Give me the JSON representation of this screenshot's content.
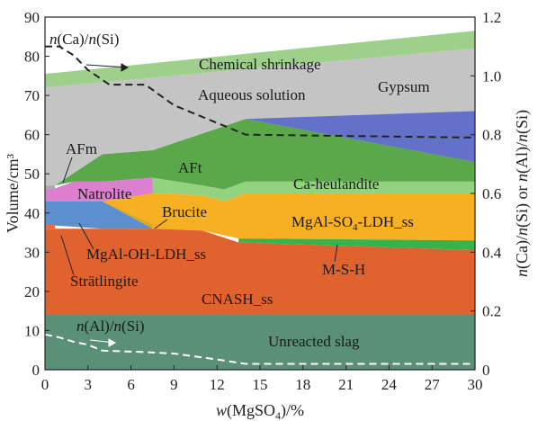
{
  "chart_data": {
    "type": "area",
    "xlabel_parts": [
      "w",
      "(MgSO",
      "4",
      ")/%"
    ],
    "ylabel": "Volume/cm³",
    "y2label_parts": [
      "n",
      "(Ca)/",
      "n",
      "(Si) or ",
      "n",
      "(Al)/",
      "n",
      "(Si)"
    ],
    "xlim": [
      0,
      30
    ],
    "ylim": [
      0,
      90
    ],
    "y2lim": [
      0,
      1.2
    ],
    "xticks": [
      "0",
      "3",
      "6",
      "9",
      "12",
      "15",
      "18",
      "21",
      "24",
      "27",
      "30"
    ],
    "yticks": [
      "0",
      "10",
      "20",
      "30",
      "40",
      "50",
      "60",
      "70",
      "80",
      "90"
    ],
    "y2ticks": [
      "0",
      "0.2",
      "0.4",
      "0.6",
      "0.8",
      "1.0",
      "1.2"
    ],
    "grid": false,
    "regions": [
      {
        "name": "Chemical shrinkage",
        "color": "#9ed08c",
        "lower": [
          [
            0,
            72
          ],
          [
            30,
            82
          ]
        ],
        "upper": [
          [
            0,
            75.5
          ],
          [
            30,
            86.5
          ]
        ]
      },
      {
        "name": "Aqueous solution",
        "color": "#c4c4c4",
        "lower": [
          [
            0,
            47
          ],
          [
            0.7,
            47
          ],
          [
            4,
            55
          ],
          [
            7.5,
            56
          ],
          [
            14,
            64
          ],
          [
            30,
            53
          ]
        ],
        "upper": [
          [
            0,
            72
          ],
          [
            30,
            82
          ]
        ]
      },
      {
        "name": "Gypsum",
        "color": "#6371c8",
        "lower": [
          [
            14,
            64
          ],
          [
            30,
            53
          ]
        ],
        "upper": [
          [
            14,
            64
          ],
          [
            30,
            66
          ]
        ]
      },
      {
        "name": "AFt",
        "color": "#5aa84a",
        "lower": [
          [
            0.7,
            47
          ],
          [
            2,
            48
          ],
          [
            4,
            48
          ],
          [
            7.5,
            49
          ],
          [
            11,
            47
          ],
          [
            12.5,
            46
          ],
          [
            14,
            48
          ],
          [
            30,
            48
          ]
        ],
        "upper": [
          [
            0.7,
            47
          ],
          [
            4,
            55
          ],
          [
            7.5,
            56
          ],
          [
            14,
            64
          ],
          [
            30,
            53
          ]
        ]
      },
      {
        "name": "AFm",
        "color": "#aaaaaa",
        "lower": [
          [
            0,
            46
          ],
          [
            0.7,
            46.3
          ]
        ],
        "upper": [
          [
            0,
            47
          ],
          [
            0.7,
            47
          ]
        ]
      },
      {
        "name": "Ca-heulandite",
        "color": "#93d37f",
        "lower": [
          [
            7.5,
            45
          ],
          [
            11,
            44.5
          ],
          [
            12.5,
            43
          ],
          [
            14,
            45
          ],
          [
            30,
            45
          ]
        ],
        "upper": [
          [
            7.5,
            49
          ],
          [
            11,
            47
          ],
          [
            12.5,
            46
          ],
          [
            14,
            48
          ],
          [
            30,
            48
          ]
        ]
      },
      {
        "name": "Natrolite",
        "color": "#dc7fcf",
        "lower": [
          [
            0,
            43
          ],
          [
            2,
            43
          ],
          [
            4,
            43
          ],
          [
            7.5,
            45
          ]
        ],
        "upper": [
          [
            0,
            46
          ],
          [
            0.7,
            46.3
          ],
          [
            2,
            48
          ],
          [
            4,
            48
          ],
          [
            7.5,
            49
          ]
        ]
      },
      {
        "name": "MgAl-SO4-LDH_ss",
        "color": "#f6b022",
        "lower": [
          [
            4,
            43
          ],
          [
            7.5,
            36
          ],
          [
            11,
            35.5
          ],
          [
            13.5,
            33.5
          ],
          [
            30,
            33
          ]
        ],
        "upper": [
          [
            4,
            43
          ],
          [
            7.5,
            45
          ],
          [
            11,
            44.5
          ],
          [
            12.5,
            43
          ],
          [
            14,
            45
          ],
          [
            30,
            45
          ]
        ]
      },
      {
        "name": "Brucite",
        "color": "#d8a728",
        "lower": [
          [
            4,
            43
          ],
          [
            7.5,
            36
          ]
        ],
        "upper": [
          [
            4,
            43
          ],
          [
            7.5,
            37
          ]
        ]
      },
      {
        "name": "M-S-H",
        "color": "#38b24a",
        "lower": [
          [
            13.5,
            32.5
          ],
          [
            30,
            30.5
          ]
        ],
        "upper": [
          [
            13.5,
            33.5
          ],
          [
            30,
            33
          ]
        ]
      },
      {
        "name": "MgAl-OH-LDH_ss",
        "color": "#5b8fd0",
        "lower": [
          [
            0,
            37
          ],
          [
            4,
            36
          ],
          [
            7.5,
            36
          ]
        ],
        "upper": [
          [
            0,
            43
          ],
          [
            4,
            43
          ],
          [
            7.5,
            36
          ]
        ]
      },
      {
        "name": "Strätlingite",
        "color": "#ee6a3a",
        "lower": [
          [
            0,
            36
          ],
          [
            0.7,
            36
          ]
        ],
        "upper": [
          [
            0,
            37
          ],
          [
            0.7,
            37
          ]
        ]
      },
      {
        "name": "CNASH_ss",
        "color": "#e0622e",
        "lower": [
          [
            0,
            14
          ],
          [
            30,
            14
          ]
        ],
        "upper": [
          [
            0,
            36
          ],
          [
            4,
            36
          ],
          [
            7.5,
            36
          ],
          [
            11,
            35.5
          ],
          [
            13.5,
            32.5
          ],
          [
            30,
            30.5
          ]
        ]
      },
      {
        "name": "Unreacted slag",
        "color": "#5a8f78",
        "lower": [
          [
            0,
            0
          ],
          [
            30,
            0
          ]
        ],
        "upper": [
          [
            0,
            14
          ],
          [
            30,
            14
          ]
        ]
      }
    ],
    "ratio_lines": [
      {
        "name": "n(Ca)/n(Si)",
        "color": "#222222",
        "axis": "right",
        "points": [
          [
            0,
            1.1
          ],
          [
            1,
            1.1
          ],
          [
            2,
            1.07
          ],
          [
            3,
            1.02
          ],
          [
            4.5,
            0.97
          ],
          [
            7,
            0.97
          ],
          [
            9,
            0.9
          ],
          [
            12,
            0.84
          ],
          [
            14,
            0.8
          ],
          [
            30,
            0.79
          ]
        ]
      },
      {
        "name": "n(Al)/n(Si)",
        "color": "#ffffff",
        "axis": "right",
        "points": [
          [
            0,
            0.12
          ],
          [
            1,
            0.11
          ],
          [
            2,
            0.095
          ],
          [
            3,
            0.085
          ],
          [
            4,
            0.065
          ],
          [
            7,
            0.06
          ],
          [
            9,
            0.055
          ],
          [
            12,
            0.035
          ],
          [
            14,
            0.02
          ],
          [
            30,
            0.02
          ]
        ]
      }
    ],
    "labels": {
      "chemical_shrinkage": "Chemical shrinkage",
      "aqueous_solution": "Aqueous solution",
      "gypsum": "Gypsum",
      "aft": "AFt",
      "afm": "AFm",
      "natrolite": "Natrolite",
      "brucite": "Brucite",
      "ca_heulandite": "Ca-heulandite",
      "mgal_so4_parts": [
        "MgAl-SO",
        "4",
        "-LDH_ss"
      ],
      "mgal_oh": "MgAl-OH-LDH_ss",
      "m_s_h": "M-S-H",
      "stratlingite": "Strätlingite",
      "cnash": "CNASH_ss",
      "unreacted_slag": "Unreacted slag",
      "ca_si_parts": [
        "n",
        "(Ca)/",
        "n",
        "(Si)"
      ],
      "al_si_parts": [
        "n",
        "(Al)/",
        "n",
        "(Si)"
      ]
    }
  }
}
